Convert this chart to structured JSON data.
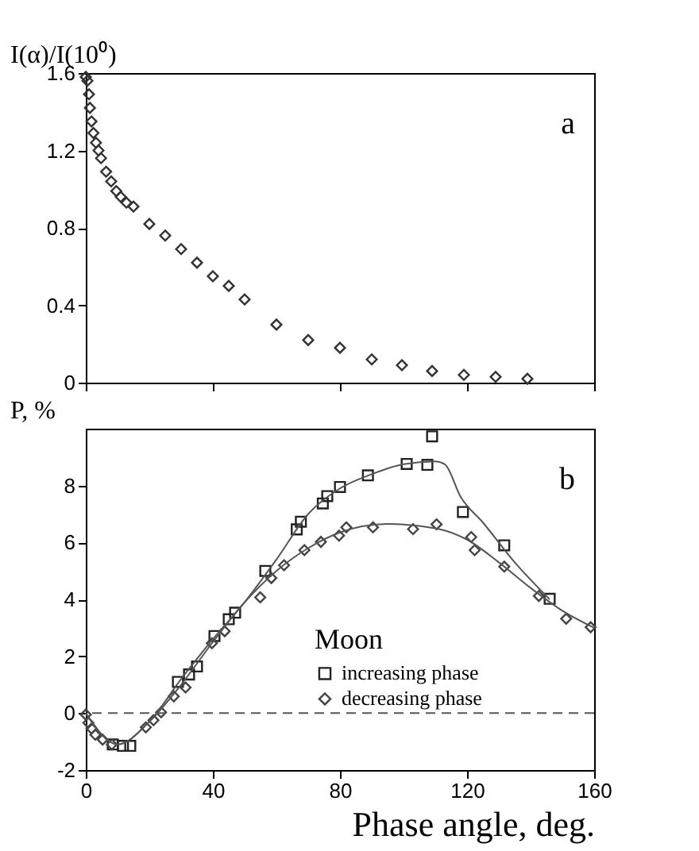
{
  "chart_data": [
    {
      "type": "scatter",
      "ylabel": "I(α)/I(10⁰)",
      "annotations": [
        "a"
      ],
      "xlim": [
        0,
        160
      ],
      "xticks": [
        0,
        40,
        80,
        120,
        160
      ],
      "ylim": [
        0,
        1.6
      ],
      "yticks": [
        0,
        0.4,
        0.8,
        1.2,
        1.6
      ],
      "tick_labels": "y",
      "grid": false,
      "marker": "diamond",
      "series": [
        {
          "color": "#333333",
          "x": [
            0,
            0.5,
            1,
            1.3,
            1.8,
            2.4,
            3.2,
            4,
            4.8,
            6.4,
            8,
            9.6,
            11,
            12.8,
            15,
            20,
            25,
            30,
            35,
            40,
            45,
            50,
            60,
            70,
            80,
            90,
            99.5,
            109,
            119,
            129,
            139
          ],
          "values": [
            1.58,
            1.56,
            1.49,
            1.42,
            1.35,
            1.29,
            1.24,
            1.2,
            1.16,
            1.09,
            1.04,
            0.99,
            0.96,
            0.93,
            0.91,
            0.82,
            0.76,
            0.69,
            0.62,
            0.55,
            0.5,
            0.43,
            0.3,
            0.22,
            0.18,
            0.12,
            0.09,
            0.06,
            0.04,
            0.03,
            0.02
          ]
        }
      ]
    },
    {
      "type": "scatter",
      "ylabel": "P, %",
      "xlabel": "Phase angle, deg.",
      "annotations": [
        "b"
      ],
      "xlim": [
        0,
        160
      ],
      "xticks": [
        0,
        40,
        80,
        120,
        160
      ],
      "ylim": [
        -2,
        10
      ],
      "yticks": [
        -2,
        0,
        2,
        4,
        6,
        8
      ],
      "grid": false,
      "legend": "bottom right",
      "legend_title": "Moon",
      "ref_lines": [
        {
          "axis": "y",
          "value": 0,
          "label": null,
          "line_style": "dashed"
        }
      ],
      "series": [
        {
          "name": "increasing phase",
          "marker": "square",
          "color": "#222222",
          "x": [
            8.5,
            11.7,
            14,
            29,
            32.5,
            35,
            40.5,
            45,
            47,
            56.5,
            66.4,
            67.7,
            74.6,
            76,
            80,
            88.8,
            101,
            107.5,
            109,
            118.7,
            131.7,
            146
          ],
          "values": [
            -1.1,
            -1.15,
            -1.15,
            1.1,
            1.36,
            1.64,
            2.71,
            3.3,
            3.53,
            5.0,
            6.46,
            6.73,
            7.37,
            7.63,
            7.95,
            8.36,
            8.76,
            8.73,
            9.73,
            7.07,
            5.9,
            4.02
          ]
        },
        {
          "name": "decreasing phase",
          "marker": "diamond",
          "color": "#444444",
          "x": [
            0,
            0.8,
            1.8,
            3,
            5.3,
            8.2,
            18.9,
            21.3,
            23.7,
            27.7,
            31.4,
            39.7,
            43.7,
            54.9,
            58.4,
            62.4,
            68.8,
            74,
            79.7,
            82,
            90.4,
            103,
            110.4,
            121.3,
            122.4,
            131.7,
            142.6,
            151.2,
            158.9
          ],
          "values": [
            -0.05,
            -0.34,
            -0.54,
            -0.76,
            -0.93,
            -1.1,
            -0.5,
            -0.25,
            0.03,
            0.59,
            0.9,
            2.46,
            2.88,
            4.07,
            4.75,
            5.2,
            5.73,
            6.02,
            6.24,
            6.53,
            6.53,
            6.47,
            6.64,
            6.19,
            5.73,
            5.15,
            4.12,
            3.32,
            3.02
          ]
        },
        {
          "type": "line",
          "color": "#555555",
          "x": [
            0,
            10,
            20,
            30,
            40,
            50,
            60,
            70,
            80,
            90,
            100,
            110,
            113,
            118,
            125,
            135,
            146
          ],
          "values": [
            0,
            -1.1,
            -0.3,
            1.2,
            2.6,
            3.9,
            5.4,
            7.0,
            7.9,
            8.4,
            8.75,
            8.85,
            8.75,
            7.6,
            6.7,
            5.3,
            4.0
          ]
        },
        {
          "type": "line",
          "color": "#555555",
          "x": [
            0,
            10,
            20,
            30,
            40,
            50,
            60,
            70,
            80,
            95,
            110,
            120,
            130,
            140,
            150,
            160
          ],
          "values": [
            0,
            -1.1,
            -0.3,
            1.0,
            2.5,
            3.9,
            5.0,
            5.8,
            6.35,
            6.65,
            6.5,
            6.1,
            5.3,
            4.4,
            3.6,
            3.0
          ]
        }
      ]
    }
  ]
}
